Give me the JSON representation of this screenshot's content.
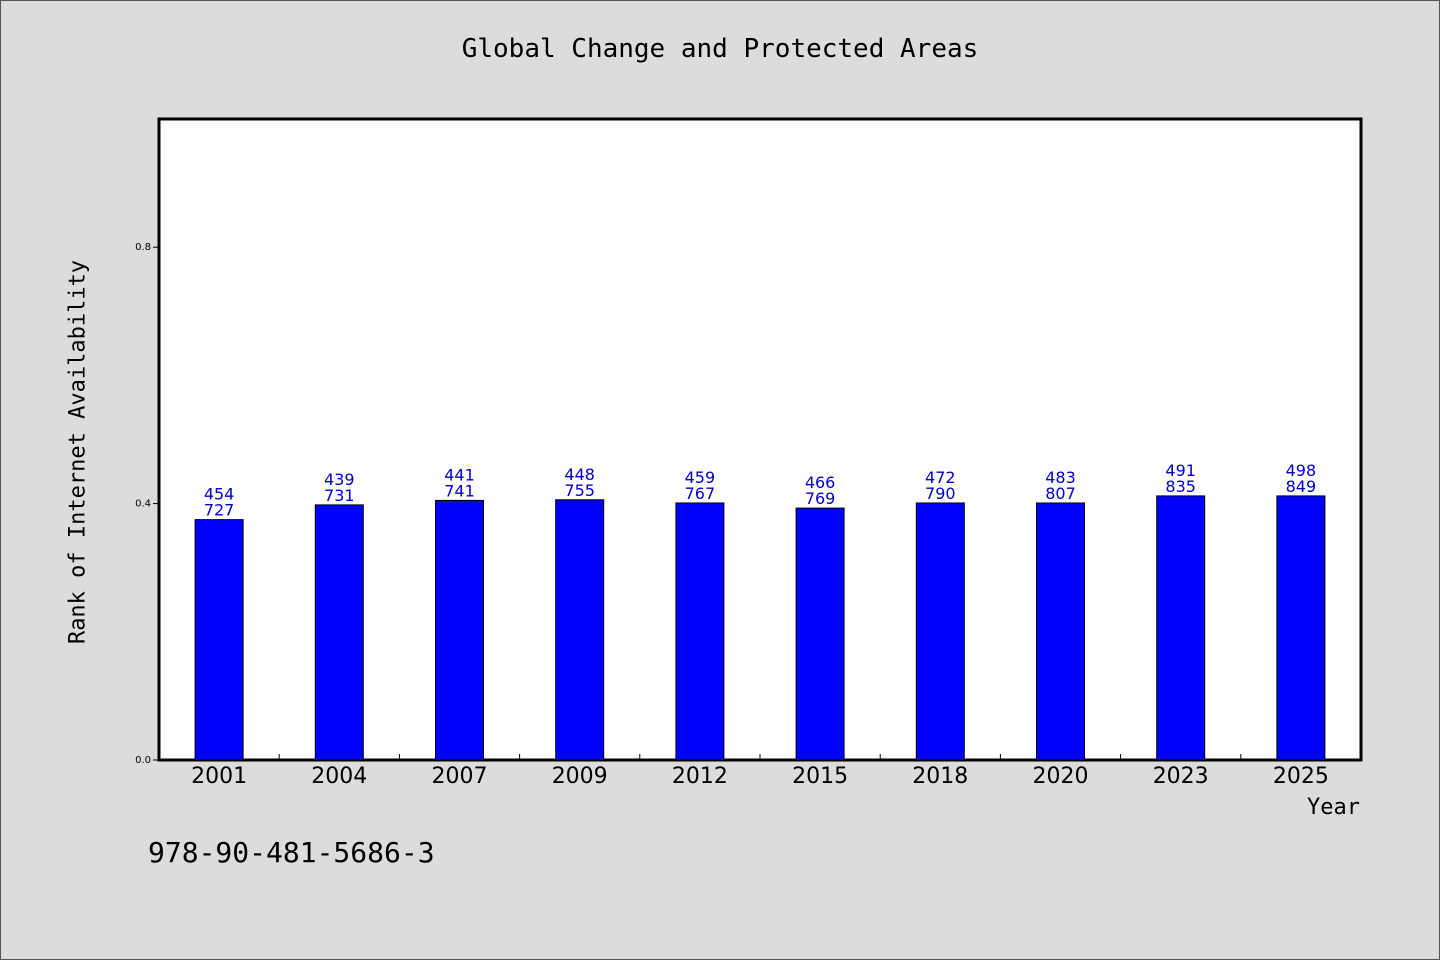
{
  "chart_data": {
    "type": "bar",
    "title": "Global Change and Protected Areas",
    "xlabel": "Year",
    "ylabel": "Rank of Internet Availability",
    "categories": [
      "2001",
      "2004",
      "2007",
      "2009",
      "2012",
      "2015",
      "2018",
      "2020",
      "2023",
      "2025"
    ],
    "values": [
      0.375,
      0.398,
      0.405,
      0.406,
      0.401,
      0.393,
      0.401,
      0.401,
      0.412,
      0.412
    ],
    "annotations": [
      [
        "454",
        "727"
      ],
      [
        "439",
        "731"
      ],
      [
        "441",
        "741"
      ],
      [
        "448",
        "755"
      ],
      [
        "459",
        "767"
      ],
      [
        "466",
        "769"
      ],
      [
        "472",
        "790"
      ],
      [
        "483",
        "807"
      ],
      [
        "491",
        "835"
      ],
      [
        "498",
        "849"
      ]
    ],
    "ylim": [
      0,
      1.0
    ],
    "yticks": [
      "0.0",
      "0.4",
      "0.8"
    ],
    "grid": false,
    "legend": "none"
  },
  "note": "978-90-481-5686-3",
  "colors": {
    "background": "#dcdcdc",
    "plot_background": "#ffffff",
    "bar_fill": "#0000ff",
    "bar_label": "#0000cc"
  }
}
